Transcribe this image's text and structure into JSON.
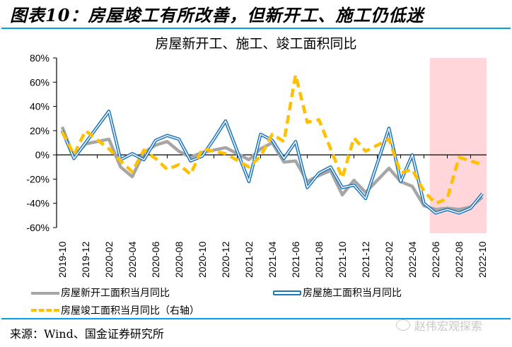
{
  "figure": {
    "title": "图表10：房屋竣工有所改善，但新开工、施工仍低迷",
    "source": "来源：Wind、国金证券研究所",
    "watermark": "赵伟宏观探索",
    "watermark_icon": "wechat-icon"
  },
  "colors": {
    "separator": "#00a2e0",
    "new_starts": "#a6a6a6",
    "under_construction": "#1c75bc",
    "completed": "#ffc000",
    "highlight": "#ffd7db"
  },
  "chart_data": {
    "type": "line",
    "title": "房屋新开工、施工、竣工面积同比",
    "xlabel": "",
    "ylabel": "",
    "ylim": [
      -60,
      80
    ],
    "yticks": [
      80,
      60,
      40,
      20,
      0,
      -20,
      -40,
      -60
    ],
    "ytick_labels": [
      "80%",
      "60%",
      "40%",
      "20%",
      "0%",
      "-20%",
      "-40%",
      "-60%"
    ],
    "xtick_labels": [
      "2019-10",
      "2019-12",
      "2020-02",
      "2020-04",
      "2020-06",
      "2020-08",
      "2020-10",
      "2020-12",
      "2021-02",
      "2021-04",
      "2021-06",
      "2021-08",
      "2021-10",
      "2021-12",
      "2022-02",
      "2022-04",
      "2022-06",
      "2022-08",
      "2022-10"
    ],
    "x": [
      "2019-10",
      "2019-11",
      "2019-12",
      "2020-02",
      "2020-03",
      "2020-04",
      "2020-05",
      "2020-06",
      "2020-07",
      "2020-08",
      "2020-09",
      "2020-10",
      "2020-11",
      "2020-12",
      "2021-02",
      "2021-03",
      "2021-04",
      "2021-05",
      "2021-06",
      "2021-07",
      "2021-08",
      "2021-09",
      "2021-10",
      "2021-11",
      "2021-12",
      "2022-02",
      "2022-03",
      "2022-04",
      "2022-05",
      "2022-06",
      "2022-07",
      "2022-08",
      "2022-09",
      "2022-10"
    ],
    "highlight_range": [
      "2022-06",
      "2022-10"
    ],
    "grid": false,
    "legend_position": "bottom",
    "series": [
      {
        "name": "房屋新开工面积当月同比",
        "style": "solid-gray",
        "axis": "left",
        "values": [
          23,
          -2,
          9,
          13,
          -10,
          -18,
          2,
          8,
          11,
          3,
          -2,
          2,
          4,
          6,
          -4,
          5,
          10,
          -6,
          -5,
          -22,
          -17,
          -13,
          -33,
          -21,
          -31,
          -11,
          -22,
          -26,
          -42,
          -45,
          -44,
          -45,
          -43,
          -35
        ]
      },
      {
        "name": "房屋施工面积当月同比",
        "style": "double-blue",
        "axis": "left",
        "values": [
          20,
          -3,
          10,
          36,
          -4,
          1,
          -4,
          12,
          16,
          13,
          -5,
          -1,
          13,
          28,
          -22,
          17,
          12,
          -3,
          11,
          -27,
          -15,
          -10,
          -27,
          -25,
          -36,
          22,
          -22,
          0,
          -40,
          -48,
          -45,
          -48,
          -44,
          -32
        ]
      },
      {
        "name": "房屋竣工面积当月同比（右轴）",
        "style": "dashed-yellow",
        "axis": "right",
        "values": [
          19,
          0,
          20,
          5,
          -5,
          -14,
          4,
          -3,
          -12,
          -8,
          -16,
          5,
          3,
          1,
          -10,
          -1,
          17,
          11,
          66,
          27,
          29,
          5,
          -19,
          14,
          3,
          13,
          -15,
          -12,
          -30,
          -40,
          -36,
          -2,
          -5,
          -8
        ]
      }
    ]
  }
}
